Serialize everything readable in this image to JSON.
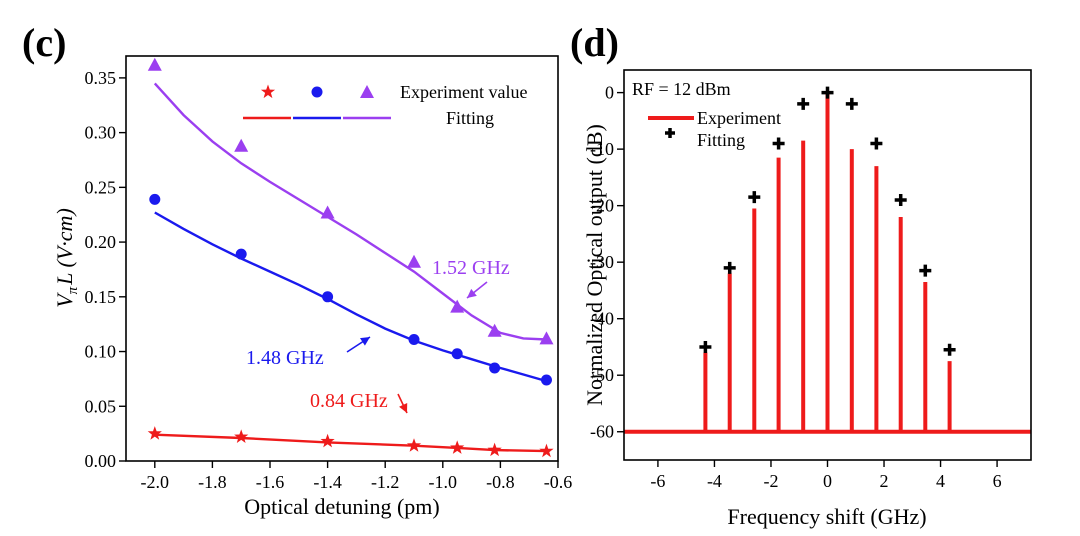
{
  "chart_data": [
    {
      "panel_label": "(c)",
      "type": "scatter",
      "xlabel": "Optical detuning (pm)",
      "ylabel_main": "V",
      "ylabel_sub": "π",
      "ylabel_rest": "L (V·cm)",
      "xlim": [
        -2.1,
        -0.6
      ],
      "ylim": [
        0.0,
        0.37
      ],
      "x_ticks": [
        -2.0,
        -1.8,
        -1.6,
        -1.4,
        -1.2,
        -1.0,
        -0.8,
        -0.6
      ],
      "x_tick_labels": [
        "-2.0",
        "-1.8",
        "-1.6",
        "-1.4",
        "-1.2",
        "-1.0",
        "-0.8",
        "-0.6"
      ],
      "y_ticks": [
        0.0,
        0.05,
        0.1,
        0.15,
        0.2,
        0.25,
        0.3,
        0.35
      ],
      "y_tick_labels": [
        "0.00",
        "0.05",
        "0.10",
        "0.15",
        "0.20",
        "0.25",
        "0.30",
        "0.35"
      ],
      "legend": {
        "experiment_label": "Experiment value",
        "fitting_label": "Fitting",
        "placement": "top-right"
      },
      "series": [
        {
          "name": "1.52 GHz",
          "color": "#9b3ff0",
          "marker": "triangle",
          "x": [
            -2.0,
            -1.7,
            -1.4,
            -1.1,
            -0.95,
            -0.82,
            -0.64
          ],
          "y": [
            0.362,
            0.288,
            0.227,
            0.182,
            0.141,
            0.119,
            0.112
          ],
          "fit_x": [
            -2.0,
            -1.9,
            -1.8,
            -1.7,
            -1.6,
            -1.5,
            -1.4,
            -1.3,
            -1.2,
            -1.1,
            -1.0,
            -0.9,
            -0.8,
            -0.72,
            -0.64
          ],
          "fit_y": [
            0.345,
            0.316,
            0.292,
            0.272,
            0.255,
            0.239,
            0.223,
            0.207,
            0.19,
            0.173,
            0.153,
            0.133,
            0.117,
            0.112,
            0.111
          ]
        },
        {
          "name": "1.48 GHz",
          "color": "#1a1aee",
          "marker": "circle",
          "x": [
            -2.0,
            -1.7,
            -1.4,
            -1.1,
            -0.95,
            -0.82,
            -0.64
          ],
          "y": [
            0.239,
            0.189,
            0.15,
            0.111,
            0.098,
            0.085,
            0.074
          ],
          "fit_x": [
            -2.0,
            -1.9,
            -1.8,
            -1.7,
            -1.6,
            -1.5,
            -1.4,
            -1.3,
            -1.2,
            -1.1,
            -1.0,
            -0.9,
            -0.8,
            -0.72,
            -0.64
          ],
          "fit_y": [
            0.227,
            0.212,
            0.198,
            0.185,
            0.173,
            0.161,
            0.148,
            0.134,
            0.121,
            0.11,
            0.101,
            0.093,
            0.085,
            0.079,
            0.073
          ]
        },
        {
          "name": "0.84 GHz",
          "color": "#ee1b1b",
          "marker": "star",
          "x": [
            -2.0,
            -1.7,
            -1.4,
            -1.1,
            -0.95,
            -0.82,
            -0.64
          ],
          "y": [
            0.025,
            0.022,
            0.018,
            0.014,
            0.012,
            0.01,
            0.009
          ],
          "fit_x": [
            -2.0,
            -1.7,
            -1.4,
            -1.1,
            -0.95,
            -0.82,
            -0.64
          ],
          "fit_y": [
            0.024,
            0.021,
            0.017,
            0.014,
            0.012,
            0.01,
            0.009
          ]
        }
      ]
    },
    {
      "panel_label": "(d)",
      "type": "bar",
      "xlabel": "Frequency shift (GHz)",
      "ylabel": "Normalized Optical output (dB)",
      "annotation": "RF = 12 dBm",
      "xlim": [
        -7.2,
        7.2
      ],
      "ylim": [
        -65,
        4
      ],
      "baseline": -60,
      "x_ticks": [
        -6,
        -4,
        -2,
        0,
        2,
        4,
        6
      ],
      "y_ticks": [
        0,
        -10,
        -20,
        -30,
        -40,
        -50,
        -60
      ],
      "legend": {
        "experiment_label": "Experiment",
        "fitting_label": "Fitting",
        "placement": "top-left"
      },
      "experiment": {
        "color": "#ee1b1b",
        "x": [
          -4.32,
          -3.46,
          -2.59,
          -1.73,
          -0.86,
          0.0,
          0.86,
          1.73,
          2.59,
          3.46,
          4.32
        ],
        "y": [
          -46,
          -32,
          -20.5,
          -11.5,
          -8.5,
          0,
          -10,
          -13,
          -22,
          -33.5,
          -47.5
        ]
      },
      "fitting": {
        "color": "#000000",
        "x": [
          -4.32,
          -3.46,
          -2.59,
          -1.73,
          -0.86,
          0.0,
          0.86,
          1.73,
          2.59,
          3.46,
          4.32
        ],
        "y": [
          -45,
          -31,
          -18.5,
          -9,
          -2,
          0,
          -2,
          -9,
          -19,
          -31.5,
          -45.5
        ]
      }
    }
  ]
}
